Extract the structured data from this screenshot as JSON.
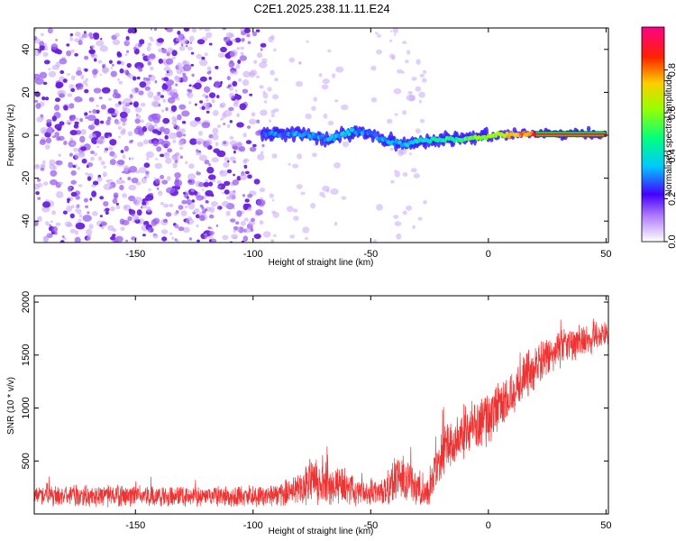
{
  "title": "C2E1.2025.238.11.11.E24",
  "chart_data": [
    {
      "type": "heatmap",
      "name": "spectrogram",
      "xlabel": "Height of straight line (km)",
      "ylabel": "Frequency (Hz)",
      "xlim": [
        -193,
        51
      ],
      "ylim": [
        -50,
        50
      ],
      "xticks": [
        -150,
        -100,
        -50,
        0,
        50
      ],
      "yticks": [
        -40,
        -20,
        0,
        20,
        40
      ],
      "xtick_labels": [
        "-150",
        "-100",
        "-50",
        "0",
        "50"
      ],
      "ytick_labels": [
        "-40",
        "-20",
        "0",
        "20",
        "40"
      ],
      "colorbar": {
        "label": "Normalized spectral amplitude",
        "range": [
          0,
          1
        ],
        "ticks": [
          0.0,
          0.2,
          0.4,
          0.6,
          0.8
        ],
        "tick_labels": [
          "0.0",
          "0.2",
          "0.4",
          "0.6",
          "0.8"
        ]
      },
      "ridge": [
        {
          "x": -95,
          "y": 0.5
        },
        {
          "x": -85,
          "y": 1
        },
        {
          "x": -75,
          "y": 0
        },
        {
          "x": -70,
          "y": -1.5
        },
        {
          "x": -65,
          "y": -1
        },
        {
          "x": -60,
          "y": 1
        },
        {
          "x": -55,
          "y": 2
        },
        {
          "x": -50,
          "y": 1
        },
        {
          "x": -45,
          "y": -2
        },
        {
          "x": -40,
          "y": -3
        },
        {
          "x": -35,
          "y": -4
        },
        {
          "x": -30,
          "y": -3
        },
        {
          "x": -20,
          "y": -2
        },
        {
          "x": -10,
          "y": -1.5
        },
        {
          "x": 0,
          "y": 0
        },
        {
          "x": 10,
          "y": 0.5
        },
        {
          "x": 20,
          "y": 0.5
        },
        {
          "x": 30,
          "y": 0.5
        },
        {
          "x": 40,
          "y": 0.5
        },
        {
          "x": 50,
          "y": 0.5
        }
      ],
      "ridge_amplitude": [
        {
          "x": -95,
          "v": 0.3
        },
        {
          "x": -60,
          "v": 0.35
        },
        {
          "x": -50,
          "v": 0.3
        },
        {
          "x": -40,
          "v": 0.35
        },
        {
          "x": -20,
          "v": 0.45
        },
        {
          "x": 0,
          "v": 0.6
        },
        {
          "x": 20,
          "v": 0.85
        },
        {
          "x": 50,
          "v": 0.95
        }
      ]
    },
    {
      "type": "line",
      "name": "snr",
      "xlabel": "Height of straight line (km)",
      "ylabel": "SNR (10 * v/v)",
      "xlim": [
        -193,
        51
      ],
      "ylim": [
        0,
        2060
      ],
      "xticks": [
        -150,
        -100,
        -50,
        0,
        50
      ],
      "yticks": [
        500,
        1000,
        1500,
        2000
      ],
      "xtick_labels": [
        "-150",
        "-100",
        "-50",
        "0",
        "50"
      ],
      "ytick_labels": [
        "500",
        "1000",
        "1500",
        "2000"
      ],
      "color": "#ee3333",
      "envelope": [
        {
          "x": -193,
          "mean": 170,
          "spread": 110
        },
        {
          "x": -90,
          "mean": 170,
          "spread": 110
        },
        {
          "x": -80,
          "mean": 240,
          "spread": 180
        },
        {
          "x": -75,
          "mean": 320,
          "spread": 260
        },
        {
          "x": -65,
          "mean": 280,
          "spread": 220
        },
        {
          "x": -55,
          "mean": 200,
          "spread": 140
        },
        {
          "x": -45,
          "mean": 200,
          "spread": 130
        },
        {
          "x": -40,
          "mean": 330,
          "spread": 250
        },
        {
          "x": -35,
          "mean": 350,
          "spread": 260
        },
        {
          "x": -28,
          "mean": 180,
          "spread": 130
        },
        {
          "x": -25,
          "mean": 230,
          "spread": 170
        },
        {
          "x": -20,
          "mean": 550,
          "spread": 300
        },
        {
          "x": -10,
          "mean": 800,
          "spread": 280
        },
        {
          "x": 0,
          "mean": 900,
          "spread": 280
        },
        {
          "x": 10,
          "mean": 1150,
          "spread": 260
        },
        {
          "x": 20,
          "mean": 1400,
          "spread": 230
        },
        {
          "x": 30,
          "mean": 1550,
          "spread": 200
        },
        {
          "x": 40,
          "mean": 1650,
          "spread": 180
        },
        {
          "x": 51,
          "mean": 1700,
          "spread": 170
        }
      ]
    }
  ]
}
